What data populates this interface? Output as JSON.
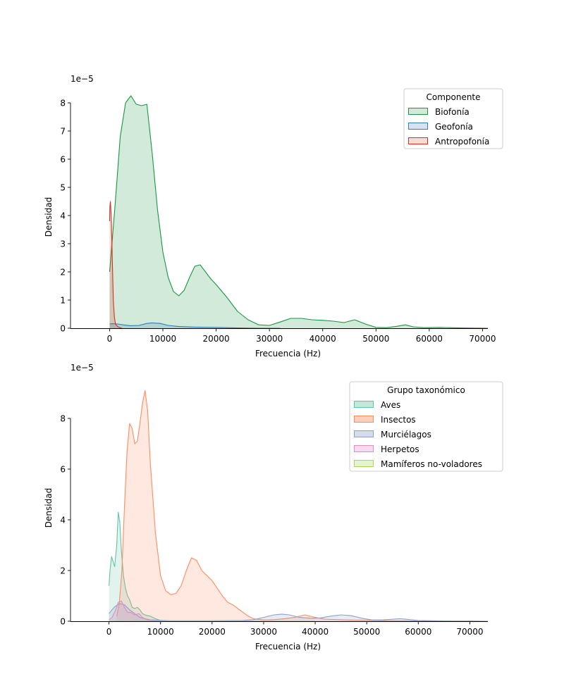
{
  "chart_data": [
    {
      "type": "area",
      "subtype": "kde",
      "xlabel": "Frecuencia (Hz)",
      "ylabel": "Densidad",
      "offset_label": "1e−5",
      "xlim": [
        -3500,
        71000
      ],
      "ylim": [
        0,
        8.4
      ],
      "x_ticks": [
        0,
        10000,
        20000,
        30000,
        40000,
        50000,
        60000,
        70000
      ],
      "y_ticks": [
        0,
        1,
        2,
        3,
        4,
        5,
        6,
        7,
        8
      ],
      "legend_title": "Componente",
      "legend_position": "top-right",
      "series": [
        {
          "name": "Biofonía",
          "color": "#1a9641",
          "fill": "#d2eadb",
          "x": [
            0,
            400,
            1000,
            2000,
            3000,
            4000,
            5000,
            6000,
            7000,
            8000,
            9000,
            10000,
            11000,
            12000,
            13000,
            14000,
            15000,
            16000,
            17000,
            18000,
            19000,
            20000,
            22000,
            24000,
            26000,
            28000,
            30000,
            32000,
            34000,
            36000,
            38000,
            40000,
            42000,
            44000,
            46000,
            48000,
            50000,
            52000,
            54000,
            55500,
            57000,
            59000,
            62000,
            66000,
            71000
          ],
          "values": [
            2.0,
            2.9,
            4.3,
            6.8,
            8.0,
            8.25,
            7.95,
            7.9,
            7.95,
            6.2,
            4.2,
            2.7,
            1.8,
            1.3,
            1.15,
            1.35,
            1.8,
            2.2,
            2.25,
            2.0,
            1.75,
            1.55,
            1.1,
            0.6,
            0.3,
            0.12,
            0.1,
            0.22,
            0.35,
            0.35,
            0.3,
            0.28,
            0.25,
            0.2,
            0.3,
            0.15,
            0.03,
            0.02,
            0.07,
            0.12,
            0.05,
            0.02,
            0.03,
            0.01,
            0.0
          ]
        },
        {
          "name": "Geofonía",
          "color": "#2c7fb8",
          "fill": "#d8e3f0",
          "x": [
            0,
            500,
            1500,
            2500,
            4000,
            5500,
            7000,
            8000,
            9500,
            11000,
            13000,
            16000,
            20000,
            24000,
            28000,
            32000
          ],
          "values": [
            0.15,
            0.16,
            0.15,
            0.12,
            0.09,
            0.1,
            0.17,
            0.19,
            0.17,
            0.1,
            0.06,
            0.04,
            0.03,
            0.01,
            0.0,
            0.0
          ]
        },
        {
          "name": "Antropofonía",
          "color": "#d7301f",
          "fill": "#f7dcd6",
          "x": [
            0,
            50,
            150,
            300,
            500,
            700,
            900,
            1100,
            1400,
            1800,
            2300
          ],
          "values": [
            3.8,
            4.3,
            4.5,
            4.0,
            2.5,
            1.0,
            0.4,
            0.15,
            0.08,
            0.03,
            0.0
          ]
        }
      ]
    },
    {
      "type": "area",
      "subtype": "kde",
      "xlabel": "Frecuencia (Hz)",
      "ylabel": "Densidad",
      "offset_label": "1e−5",
      "xlim": [
        -3500,
        73500
      ],
      "ylim": [
        0,
        9.5
      ],
      "x_ticks": [
        0,
        10000,
        20000,
        30000,
        40000,
        50000,
        60000,
        70000
      ],
      "y_ticks": [
        0,
        2,
        4,
        6,
        8
      ],
      "legend_title": "Grupo taxonómico",
      "legend_position": "top-right",
      "series": [
        {
          "name": "Aves",
          "color": "#66c2a5",
          "fill": "#c2e7db",
          "x": [
            0,
            200,
            500,
            800,
            1100,
            1500,
            1800,
            2100,
            2400,
            2800,
            3200,
            3600,
            4000,
            4500,
            5000,
            5500,
            6000,
            6500,
            7000,
            7500,
            8000,
            8500,
            9000,
            10000,
            11000
          ],
          "values": [
            1.4,
            2.0,
            2.55,
            2.35,
            2.15,
            3.0,
            4.3,
            3.9,
            2.8,
            1.8,
            1.3,
            1.0,
            0.85,
            0.55,
            0.5,
            0.55,
            0.45,
            0.3,
            0.25,
            0.22,
            0.2,
            0.15,
            0.1,
            0.03,
            0.0
          ]
        },
        {
          "name": "Insectos",
          "color": "#fc8d62",
          "fill": "#fdd0bd",
          "x": [
            1500,
            2000,
            2500,
            3000,
            3500,
            4000,
            4500,
            5000,
            5500,
            6000,
            6500,
            7000,
            7500,
            8000,
            9000,
            10000,
            11000,
            12000,
            13000,
            14000,
            15000,
            16000,
            17000,
            18000,
            19000,
            20000,
            21000,
            22000,
            23000,
            24000,
            25000,
            26000,
            27000,
            28000,
            30000,
            32000,
            34000,
            36000,
            38000,
            40000,
            42000,
            46000,
            52000,
            60000,
            70000
          ],
          "values": [
            0.2,
            0.7,
            2.0,
            4.5,
            6.7,
            7.8,
            7.6,
            7.0,
            7.1,
            7.8,
            8.6,
            9.1,
            8.3,
            6.3,
            3.5,
            1.8,
            1.2,
            1.05,
            1.1,
            1.4,
            2.0,
            2.5,
            2.4,
            2.0,
            1.8,
            1.6,
            1.3,
            1.0,
            0.75,
            0.65,
            0.5,
            0.35,
            0.2,
            0.1,
            0.05,
            0.06,
            0.1,
            0.15,
            0.25,
            0.15,
            0.08,
            0.05,
            0.03,
            0.01,
            0.0
          ]
        },
        {
          "name": "Murciélagos",
          "color": "#8da0cb",
          "fill": "#d5dbeb",
          "x": [
            0,
            1000,
            2000,
            3000,
            4000,
            5000,
            6000,
            8000,
            12000,
            20000,
            26000,
            28000,
            30000,
            32000,
            33500,
            35000,
            37000,
            39000,
            41000,
            43000,
            45000,
            47000,
            49000,
            51000,
            53000,
            55000,
            56500,
            58000,
            60000,
            63000,
            66000,
            70000,
            73500
          ],
          "values": [
            0.3,
            0.55,
            0.7,
            0.65,
            0.45,
            0.3,
            0.15,
            0.05,
            0.02,
            0.02,
            0.03,
            0.06,
            0.15,
            0.25,
            0.28,
            0.25,
            0.15,
            0.12,
            0.13,
            0.2,
            0.25,
            0.22,
            0.12,
            0.05,
            0.05,
            0.08,
            0.1,
            0.07,
            0.03,
            0.02,
            0.01,
            0.01,
            0.0
          ]
        },
        {
          "name": "Herpetos",
          "color": "#e78ac3",
          "fill": "#f8dbee",
          "x": [
            0,
            600,
            1200,
            1800,
            2400,
            3000,
            3600,
            4200,
            5000,
            5800,
            6500,
            7500,
            9000
          ],
          "values": [
            0.05,
            0.15,
            0.4,
            0.75,
            0.8,
            0.55,
            0.35,
            0.35,
            0.25,
            0.3,
            0.15,
            0.05,
            0.0
          ]
        },
        {
          "name": "Mamíferos no-voladores",
          "color": "#a6d854",
          "fill": "#e6f3cf",
          "x": [
            0,
            2000,
            6000,
            10000,
            20000,
            30000,
            40000
          ],
          "values": [
            0.0,
            0.01,
            0.02,
            0.01,
            0.01,
            0.0,
            0.0
          ]
        }
      ]
    }
  ]
}
